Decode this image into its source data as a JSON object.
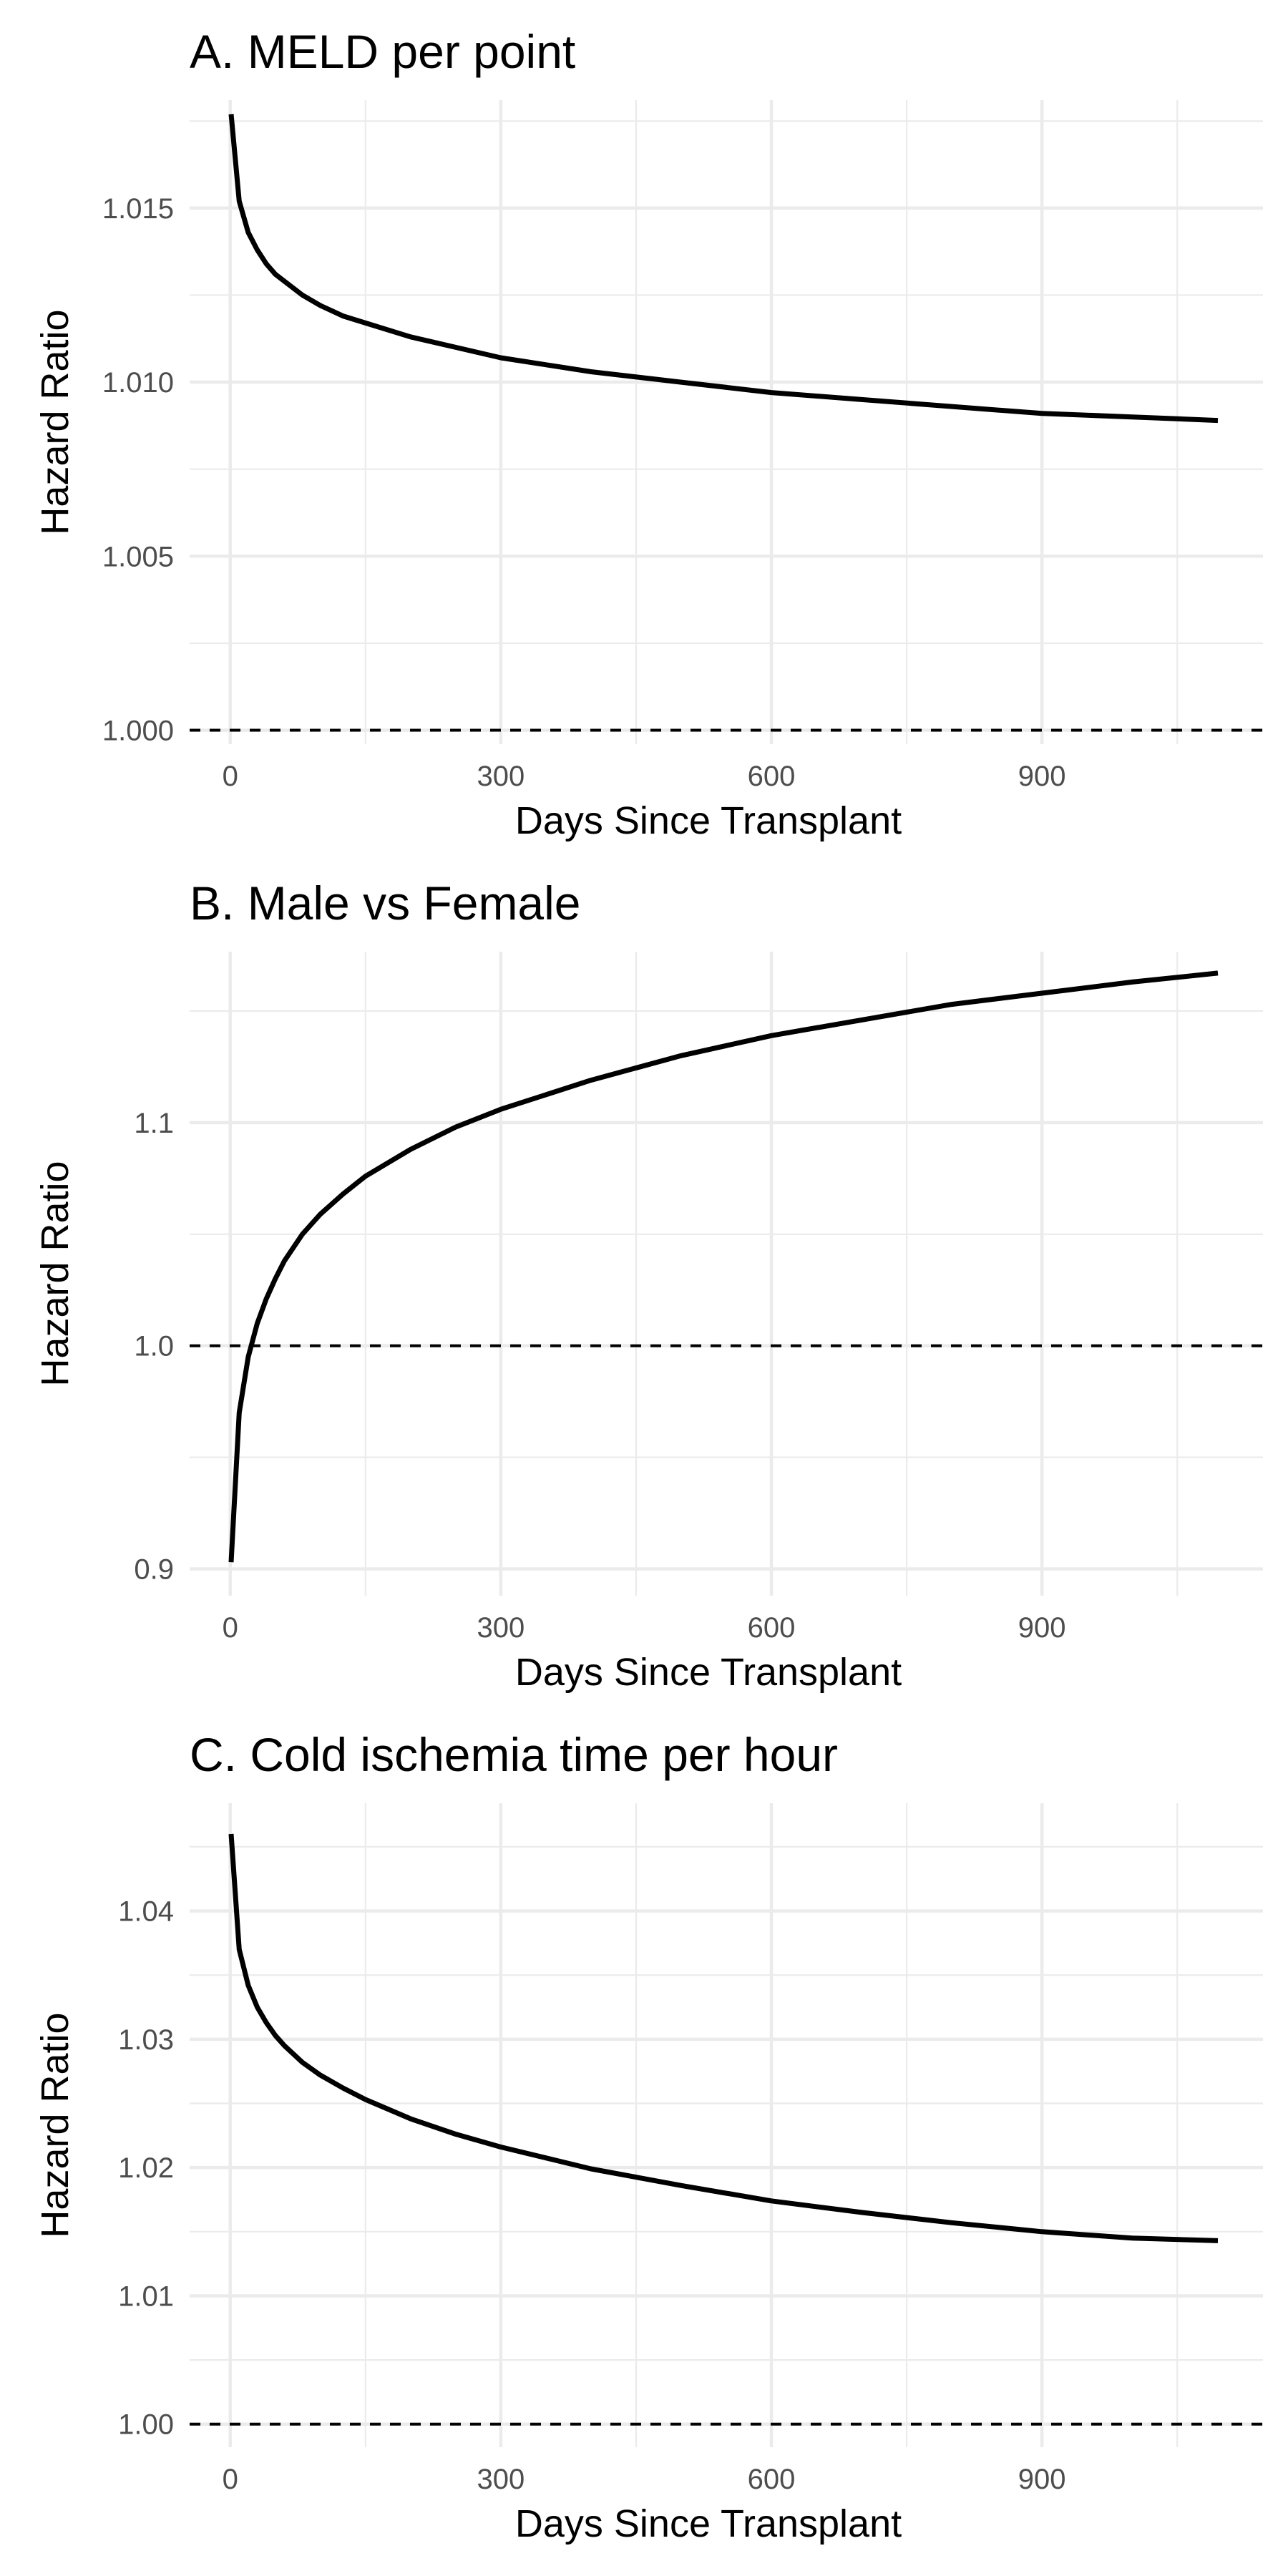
{
  "chart_data": [
    {
      "type": "line",
      "title": "A. MELD per point",
      "xlabel": "Days Since Transplant",
      "ylabel": "Hazard Ratio",
      "xlim": [
        -45,
        1145
      ],
      "ylim": [
        0.9996,
        1.0181
      ],
      "xticks": [
        0,
        300,
        600,
        900
      ],
      "xtick_labels": [
        "0",
        "300",
        "600",
        "900"
      ],
      "yticks": [
        1.0,
        1.005,
        1.01,
        1.015
      ],
      "ytick_labels": [
        "1.000",
        "1.005",
        "1.010",
        "1.015"
      ],
      "grid": true,
      "reference_line": {
        "y": 1.0,
        "style": "dashed"
      },
      "series": [
        {
          "color": "#000000",
          "x": [
            1,
            10,
            20,
            30,
            40,
            50,
            60,
            80,
            100,
            125,
            150,
            200,
            250,
            300,
            400,
            500,
            600,
            700,
            800,
            900,
            1000,
            1095
          ],
          "y": [
            1.0177,
            1.0152,
            1.0143,
            1.0138,
            1.0134,
            1.0131,
            1.0129,
            1.0125,
            1.0122,
            1.0119,
            1.0117,
            1.0113,
            1.011,
            1.0107,
            1.0103,
            1.01,
            1.0097,
            1.0095,
            1.0093,
            1.0091,
            1.009,
            1.0089
          ]
        }
      ]
    },
    {
      "type": "line",
      "title": "B. Male vs Female",
      "xlabel": "Days Since Transplant",
      "ylabel": "Hazard Ratio",
      "xlim": [
        -45,
        1145
      ],
      "ylim": [
        0.888,
        1.1766
      ],
      "xticks": [
        0,
        300,
        600,
        900
      ],
      "xtick_labels": [
        "0",
        "300",
        "600",
        "900"
      ],
      "yticks": [
        0.9,
        1.0,
        1.1
      ],
      "ytick_labels": [
        "0.9",
        "1.0",
        "1.1"
      ],
      "grid": true,
      "reference_line": {
        "y": 1.0,
        "style": "dashed"
      },
      "series": [
        {
          "color": "#000000",
          "x": [
            1,
            10,
            20,
            30,
            40,
            50,
            60,
            80,
            100,
            125,
            150,
            200,
            250,
            300,
            400,
            500,
            600,
            700,
            800,
            900,
            1000,
            1095
          ],
          "y": [
            0.903,
            0.97,
            0.995,
            1.01,
            1.021,
            1.03,
            1.038,
            1.05,
            1.059,
            1.068,
            1.076,
            1.088,
            1.098,
            1.106,
            1.119,
            1.13,
            1.139,
            1.146,
            1.153,
            1.158,
            1.163,
            1.167
          ]
        }
      ]
    },
    {
      "type": "line",
      "title": "C. Cold ischemia time per hour",
      "xlabel": "Days Since Transplant",
      "ylabel": "Hazard Ratio",
      "xlim": [
        -45,
        1145
      ],
      "ylim": [
        0.9982,
        1.0484
      ],
      "xticks": [
        0,
        300,
        600,
        900
      ],
      "xtick_labels": [
        "0",
        "300",
        "600",
        "900"
      ],
      "yticks": [
        1.0,
        1.01,
        1.02,
        1.03,
        1.04
      ],
      "ytick_labels": [
        "1.00",
        "1.01",
        "1.02",
        "1.03",
        "1.04"
      ],
      "grid": true,
      "reference_line": {
        "y": 1.0,
        "style": "dashed"
      },
      "series": [
        {
          "color": "#000000",
          "x": [
            1,
            10,
            20,
            30,
            40,
            50,
            60,
            80,
            100,
            125,
            150,
            200,
            250,
            300,
            400,
            500,
            600,
            700,
            800,
            900,
            1000,
            1095
          ],
          "y": [
            1.046,
            1.037,
            1.0342,
            1.0325,
            1.0313,
            1.0303,
            1.0295,
            1.0282,
            1.0272,
            1.0262,
            1.0253,
            1.0238,
            1.0226,
            1.0216,
            1.0199,
            1.0186,
            1.0174,
            1.0165,
            1.0157,
            1.015,
            1.0145,
            1.0143
          ]
        }
      ]
    }
  ]
}
